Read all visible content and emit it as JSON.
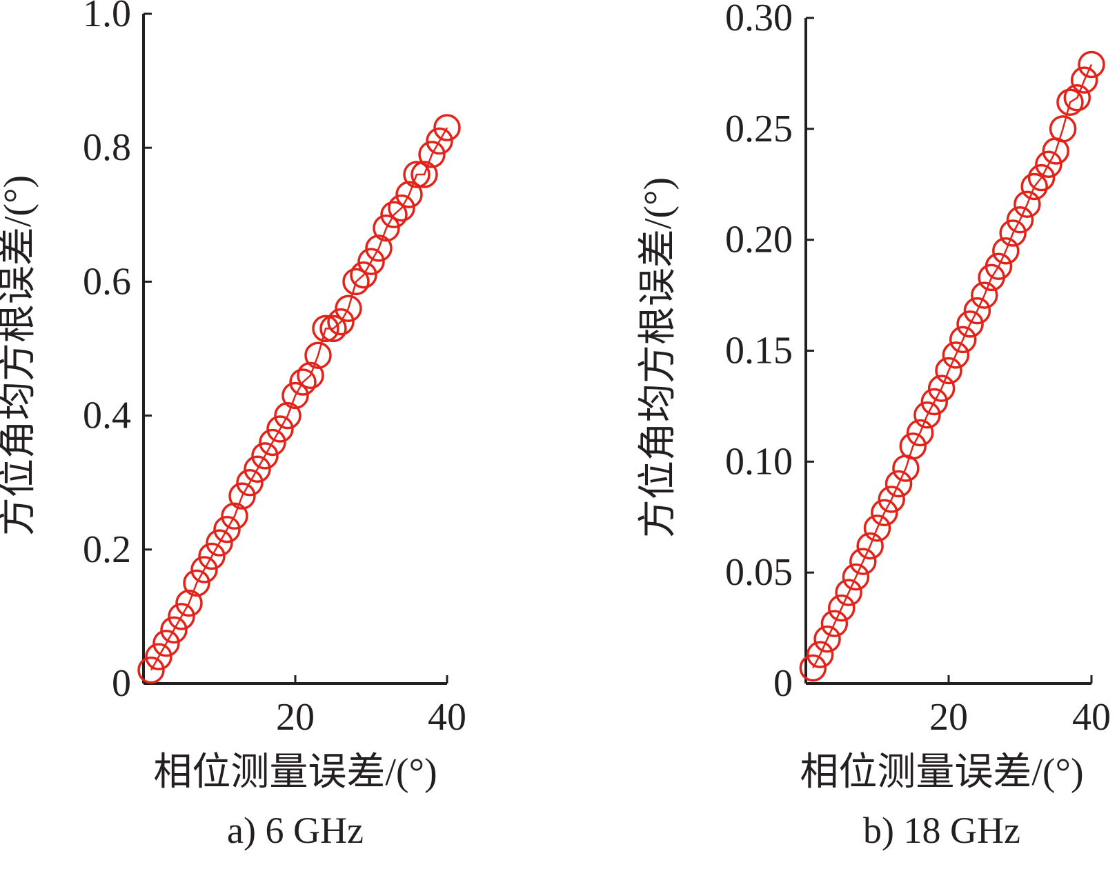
{
  "chart_data": [
    {
      "type": "line",
      "caption": "a) 6 GHz",
      "xlabel": "相位测量误差/(°)",
      "ylabel": "方位角均方根误差/(°)",
      "xlim": [
        0,
        40
      ],
      "ylim": [
        0,
        1.0
      ],
      "xticks": [
        20,
        40
      ],
      "xtick_labels": [
        "20",
        "40"
      ],
      "yticks": [
        0,
        0.2,
        0.4,
        0.6,
        0.8,
        1.0
      ],
      "ytick_labels": [
        "0",
        "0.2",
        "0.4",
        "0.6",
        "0.8",
        "1.0"
      ],
      "grid": false,
      "marker": "circle",
      "color": "#e2231a",
      "series": [
        {
          "x": [
            1,
            2,
            3,
            4,
            5,
            6,
            7,
            8,
            9,
            10,
            11,
            12,
            13,
            14,
            15,
            16,
            17,
            18,
            19,
            20,
            21,
            22,
            23,
            24,
            25,
            26,
            27,
            28,
            29,
            30,
            31,
            32,
            33,
            34,
            35,
            36,
            37,
            38,
            39,
            40
          ],
          "values": [
            0.02,
            0.04,
            0.06,
            0.08,
            0.1,
            0.12,
            0.15,
            0.17,
            0.19,
            0.21,
            0.23,
            0.25,
            0.28,
            0.3,
            0.32,
            0.34,
            0.36,
            0.38,
            0.4,
            0.43,
            0.45,
            0.46,
            0.49,
            0.53,
            0.53,
            0.54,
            0.56,
            0.6,
            0.61,
            0.63,
            0.65,
            0.68,
            0.7,
            0.71,
            0.73,
            0.76,
            0.76,
            0.79,
            0.81,
            0.83
          ]
        }
      ]
    },
    {
      "type": "line",
      "caption": "b) 18 GHz",
      "xlabel": "相位测量误差/(°)",
      "ylabel": "方位角均方根误差/(°)",
      "xlim": [
        0,
        40
      ],
      "ylim": [
        0,
        0.3
      ],
      "xticks": [
        20,
        40
      ],
      "xtick_labels": [
        "20",
        "40"
      ],
      "yticks": [
        0,
        0.05,
        0.1,
        0.15,
        0.2,
        0.25,
        0.3
      ],
      "ytick_labels": [
        "0",
        "0.05",
        "0.10",
        "0.15",
        "0.20",
        "0.25",
        "0.30"
      ],
      "grid": false,
      "marker": "circle",
      "color": "#e2231a",
      "series": [
        {
          "x": [
            1,
            2,
            3,
            4,
            5,
            6,
            7,
            8,
            9,
            10,
            11,
            12,
            13,
            14,
            15,
            16,
            17,
            18,
            19,
            20,
            21,
            22,
            23,
            24,
            25,
            26,
            27,
            28,
            29,
            30,
            31,
            32,
            33,
            34,
            35,
            36,
            37,
            38,
            39,
            40
          ],
          "values": [
            0.007,
            0.013,
            0.02,
            0.027,
            0.034,
            0.041,
            0.048,
            0.055,
            0.062,
            0.07,
            0.077,
            0.083,
            0.09,
            0.097,
            0.107,
            0.113,
            0.121,
            0.127,
            0.133,
            0.141,
            0.148,
            0.155,
            0.162,
            0.168,
            0.175,
            0.183,
            0.188,
            0.195,
            0.203,
            0.209,
            0.216,
            0.224,
            0.228,
            0.234,
            0.24,
            0.25,
            0.262,
            0.264,
            0.272,
            0.279
          ]
        }
      ]
    }
  ]
}
